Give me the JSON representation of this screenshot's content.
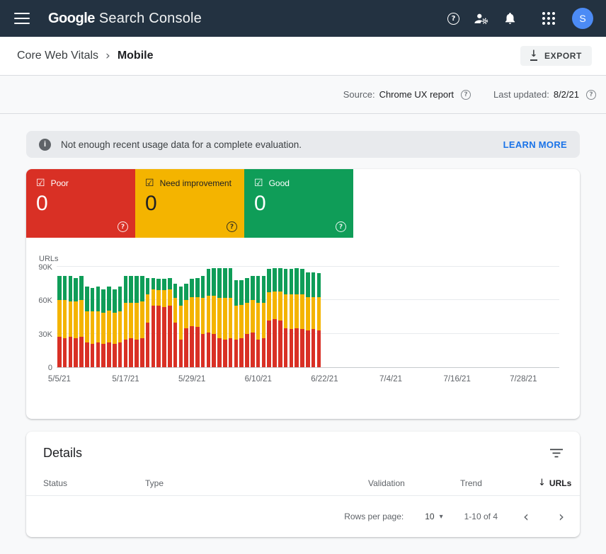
{
  "appbar": {
    "product": "Google",
    "product_suffix": "Search Console",
    "avatar_letter": "S"
  },
  "breadcrumb": {
    "section": "Core Web Vitals",
    "page": "Mobile"
  },
  "toolbar": {
    "export_label": "EXPORT"
  },
  "meta": {
    "source_label": "Source:",
    "source_value": "Chrome UX report",
    "updated_label": "Last updated:",
    "updated_value": "8/2/21"
  },
  "banner": {
    "message": "Not enough recent usage data for a complete evaluation.",
    "action_label": "LEARN MORE"
  },
  "tiles": [
    {
      "label": "Poor",
      "value": "0",
      "color": "#d93025",
      "text_color": "#ffffff"
    },
    {
      "label": "Need improvement",
      "value": "0",
      "color": "#f4b400",
      "text_color": "#202124"
    },
    {
      "label": "Good",
      "value": "0",
      "color": "#0f9d58",
      "text_color": "#ffffff"
    }
  ],
  "chart_data": {
    "type": "bar",
    "stacked": true,
    "title": "",
    "xlabel": "",
    "ylabel": "URLs",
    "units": "URL count (values in thousands)",
    "ylim": [
      0,
      90000
    ],
    "ytick_values": [
      0,
      30000,
      60000,
      90000
    ],
    "yticks": [
      "0",
      "30K",
      "60K",
      "90K"
    ],
    "xtick_labels": [
      "5/5/21",
      "5/17/21",
      "5/29/21",
      "6/10/21",
      "6/22/21",
      "7/4/21",
      "7/16/21",
      "7/28/21"
    ],
    "xtick_days": [
      0,
      12,
      24,
      36,
      48,
      60,
      72,
      84
    ],
    "axis_total_days": 91,
    "start_date": "5/5/21",
    "x_interval": "daily",
    "grid": true,
    "legend_position": "tiles-above",
    "series": [
      {
        "name": "Poor",
        "color": "#d93025",
        "values_k": [
          27,
          26,
          27,
          26,
          27,
          22,
          21,
          22,
          21,
          22,
          21,
          22,
          25,
          26,
          25,
          26,
          40,
          55,
          55,
          54,
          55,
          40,
          25,
          35,
          37,
          36,
          30,
          31,
          30,
          26,
          25,
          26,
          25,
          26,
          30,
          31,
          25,
          26,
          42,
          43,
          42,
          35,
          34,
          35,
          34,
          33,
          34,
          33
        ]
      },
      {
        "name": "Need improvement",
        "color": "#f4b400",
        "values_k": [
          33,
          34,
          32,
          33,
          33,
          28,
          29,
          28,
          28,
          29,
          28,
          28,
          33,
          32,
          33,
          33,
          25,
          15,
          14,
          15,
          15,
          22,
          30,
          25,
          26,
          27,
          32,
          33,
          34,
          36,
          37,
          36,
          30,
          30,
          28,
          29,
          33,
          32,
          25,
          25,
          26,
          30,
          31,
          30,
          31,
          30,
          29,
          30
        ]
      },
      {
        "name": "Good",
        "color": "#0f9d58",
        "values_k": [
          22,
          22,
          23,
          21,
          22,
          22,
          21,
          22,
          21,
          21,
          21,
          22,
          24,
          24,
          24,
          23,
          15,
          10,
          10,
          10,
          10,
          13,
          17,
          15,
          16,
          17,
          20,
          24,
          25,
          27,
          27,
          27,
          23,
          22,
          22,
          22,
          24,
          24,
          21,
          21,
          21,
          23,
          23,
          24,
          23,
          22,
          22,
          21
        ]
      }
    ]
  },
  "details": {
    "title": "Details",
    "columns": [
      "Status",
      "Type",
      "Validation",
      "Trend",
      "URLs"
    ],
    "sorted_column": "URLs",
    "pagination": {
      "rows_label": "Rows per page:",
      "rows_value": "10",
      "range": "1-10 of 4"
    }
  },
  "icons": {
    "checkbox": "☑",
    "help": "?",
    "info": "i",
    "chevron_right": "›",
    "download_arrow": "↓",
    "sort_arrow": "↓",
    "dropdown": "▾",
    "prev": "‹",
    "next": "›"
  }
}
